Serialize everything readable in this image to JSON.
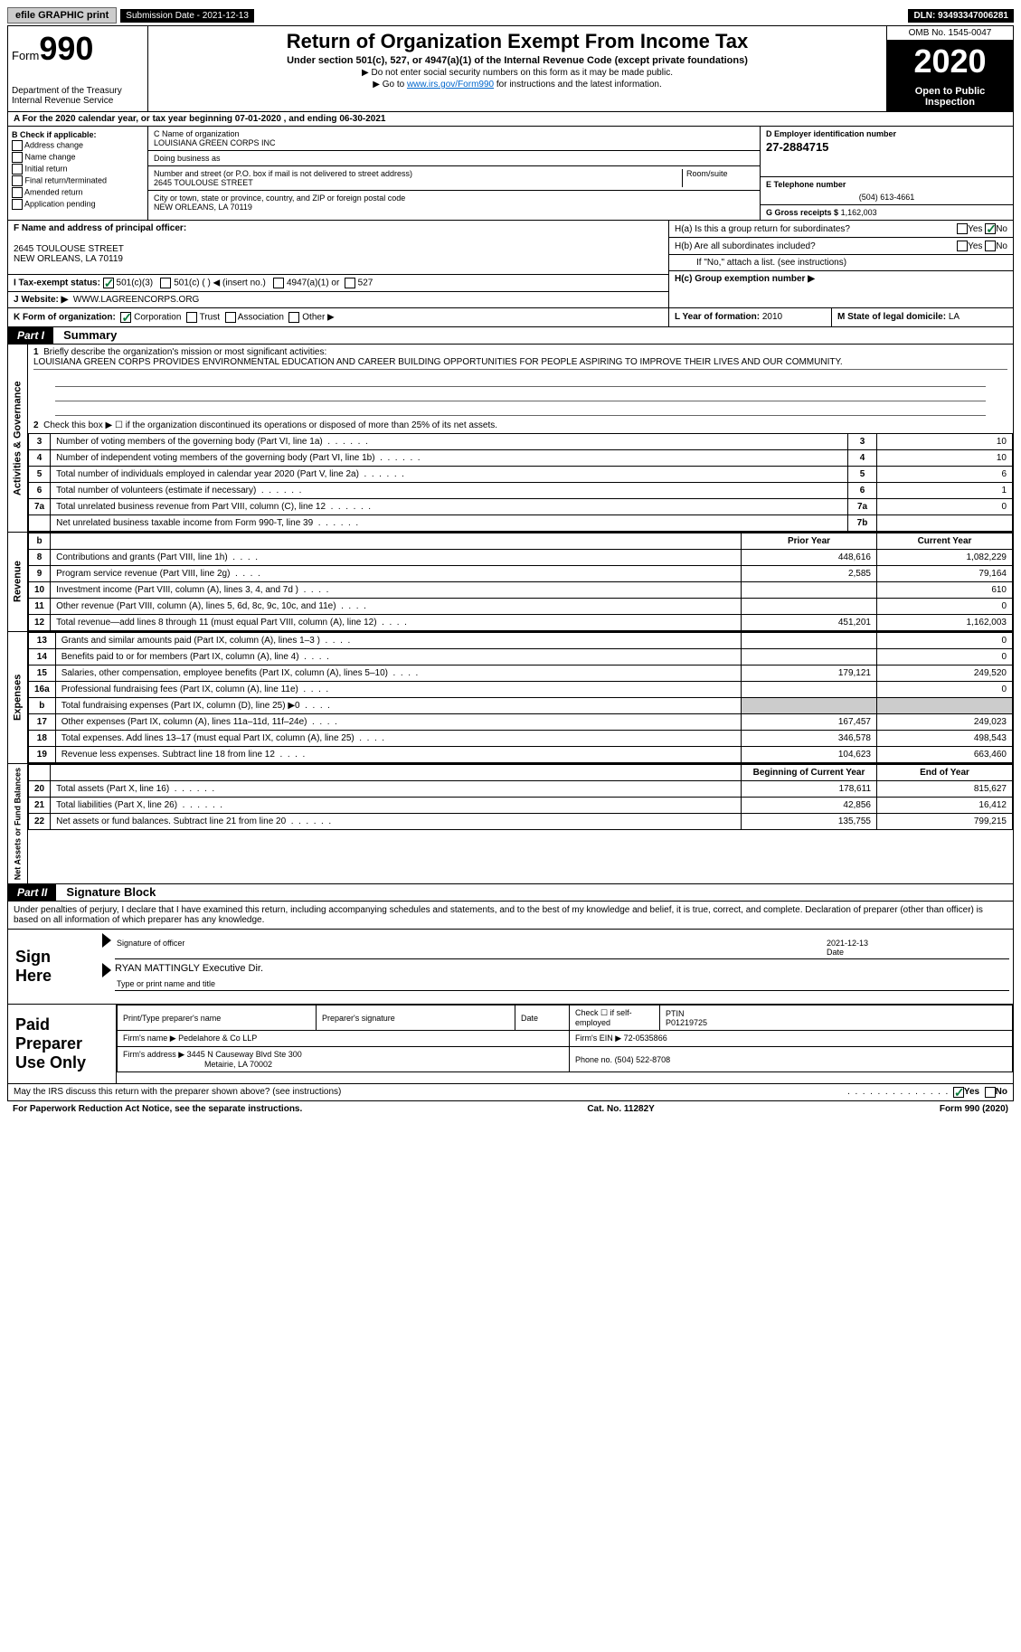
{
  "topbar": {
    "efile": "efile GRAPHIC print",
    "submission": "Submission Date - 2021-12-13",
    "dln": "DLN: 93493347006281"
  },
  "header": {
    "form_label": "Form",
    "form_num": "990",
    "dept": "Department of the Treasury\nInternal Revenue Service",
    "title": "Return of Organization Exempt From Income Tax",
    "sub": "Under section 501(c), 527, or 4947(a)(1) of the Internal Revenue Code (except private foundations)",
    "note1": "▶ Do not enter social security numbers on this form as it may be made public.",
    "note2_pre": "▶ Go to ",
    "note2_link": "www.irs.gov/Form990",
    "note2_post": " for instructions and the latest information.",
    "omb": "OMB No. 1545-0047",
    "year": "2020",
    "inspect": "Open to Public Inspection"
  },
  "row_a": "A For the 2020 calendar year, or tax year beginning 07-01-2020   , and ending 06-30-2021",
  "box_b": {
    "title": "B Check if applicable:",
    "items": [
      "Address change",
      "Name change",
      "Initial return",
      "Final return/terminated",
      "Amended return",
      "Application pending"
    ]
  },
  "box_c": {
    "c_label": "C Name of organization",
    "org": "LOUISIANA GREEN CORPS INC",
    "dba_label": "Doing business as",
    "dba": "",
    "street_label": "Number and street (or P.O. box if mail is not delivered to street address)",
    "room_label": "Room/suite",
    "street": "2645 TOULOUSE STREET",
    "city_label": "City or town, state or province, country, and ZIP or foreign postal code",
    "city": "NEW ORLEANS, LA  70119"
  },
  "box_d": {
    "label": "D Employer identification number",
    "ein": "27-2884715"
  },
  "box_e": {
    "label": "E Telephone number",
    "phone": "(504) 613-4661"
  },
  "box_g": {
    "label": "G Gross receipts $",
    "val": "1,162,003"
  },
  "box_f": {
    "label": "F Name and address of principal officer:",
    "addr1": "2645 TOULOUSE STREET",
    "addr2": "NEW ORLEANS, LA  70119"
  },
  "box_h": {
    "ha": "H(a)  Is this a group return for subordinates?",
    "hb": "H(b)  Are all subordinates included?",
    "hb_note": "If \"No,\" attach a list. (see instructions)",
    "hc": "H(c)  Group exemption number ▶",
    "yes": "Yes",
    "no": "No"
  },
  "row_i": {
    "label": "I   Tax-exempt status:",
    "opts": [
      "501(c)(3)",
      "501(c) (  ) ◀ (insert no.)",
      "4947(a)(1) or",
      "527"
    ]
  },
  "row_j": {
    "label": "J   Website: ▶",
    "val": "WWW.LAGREENCORPS.ORG"
  },
  "row_k": {
    "label": "K Form of organization:",
    "opts": [
      "Corporation",
      "Trust",
      "Association",
      "Other ▶"
    ]
  },
  "row_l": {
    "label": "L Year of formation:",
    "val": "2010"
  },
  "row_m": {
    "label": "M State of legal domicile:",
    "val": "LA"
  },
  "part1": {
    "hdr": "Part I",
    "title": "Summary"
  },
  "summary": {
    "vert1": "Activities & Governance",
    "vert2": "Revenue",
    "vert3": "Expenses",
    "vert4": "Net Assets or Fund Balances",
    "l1": "Briefly describe the organization's mission or most significant activities:",
    "mission": "LOUISIANA GREEN CORPS PROVIDES ENVIRONMENTAL EDUCATION AND CAREER BUILDING OPPORTUNITIES FOR PEOPLE ASPIRING TO IMPROVE THEIR LIVES AND OUR COMMUNITY.",
    "l2": "Check this box ▶ ☐  if the organization discontinued its operations or disposed of more than 25% of its net assets.",
    "lines_a": [
      {
        "n": "3",
        "d": "Number of voting members of the governing body (Part VI, line 1a)",
        "lbl": "3",
        "v": "10"
      },
      {
        "n": "4",
        "d": "Number of independent voting members of the governing body (Part VI, line 1b)",
        "lbl": "4",
        "v": "10"
      },
      {
        "n": "5",
        "d": "Total number of individuals employed in calendar year 2020 (Part V, line 2a)",
        "lbl": "5",
        "v": "6"
      },
      {
        "n": "6",
        "d": "Total number of volunteers (estimate if necessary)",
        "lbl": "6",
        "v": "1"
      },
      {
        "n": "7a",
        "d": "Total unrelated business revenue from Part VIII, column (C), line 12",
        "lbl": "7a",
        "v": "0"
      },
      {
        "n": "",
        "d": "Net unrelated business taxable income from Form 990-T, line 39",
        "lbl": "7b",
        "v": ""
      }
    ],
    "col_hdr": {
      "b": "b",
      "py": "Prior Year",
      "cy": "Current Year",
      "boy": "Beginning of Current Year",
      "eoy": "End of Year"
    },
    "lines_rev": [
      {
        "n": "8",
        "d": "Contributions and grants (Part VIII, line 1h)",
        "py": "448,616",
        "cy": "1,082,229"
      },
      {
        "n": "9",
        "d": "Program service revenue (Part VIII, line 2g)",
        "py": "2,585",
        "cy": "79,164"
      },
      {
        "n": "10",
        "d": "Investment income (Part VIII, column (A), lines 3, 4, and 7d )",
        "py": "",
        "cy": "610"
      },
      {
        "n": "11",
        "d": "Other revenue (Part VIII, column (A), lines 5, 6d, 8c, 9c, 10c, and 11e)",
        "py": "",
        "cy": "0"
      },
      {
        "n": "12",
        "d": "Total revenue—add lines 8 through 11 (must equal Part VIII, column (A), line 12)",
        "py": "451,201",
        "cy": "1,162,003"
      }
    ],
    "lines_exp": [
      {
        "n": "13",
        "d": "Grants and similar amounts paid (Part IX, column (A), lines 1–3 )",
        "py": "",
        "cy": "0"
      },
      {
        "n": "14",
        "d": "Benefits paid to or for members (Part IX, column (A), line 4)",
        "py": "",
        "cy": "0"
      },
      {
        "n": "15",
        "d": "Salaries, other compensation, employee benefits (Part IX, column (A), lines 5–10)",
        "py": "179,121",
        "cy": "249,520"
      },
      {
        "n": "16a",
        "d": "Professional fundraising fees (Part IX, column (A), line 11e)",
        "py": "",
        "cy": "0"
      },
      {
        "n": "b",
        "d": "Total fundraising expenses (Part IX, column (D), line 25) ▶0",
        "py": "shade",
        "cy": "shade"
      },
      {
        "n": "17",
        "d": "Other expenses (Part IX, column (A), lines 11a–11d, 11f–24e)",
        "py": "167,457",
        "cy": "249,023"
      },
      {
        "n": "18",
        "d": "Total expenses. Add lines 13–17 (must equal Part IX, column (A), line 25)",
        "py": "346,578",
        "cy": "498,543"
      },
      {
        "n": "19",
        "d": "Revenue less expenses. Subtract line 18 from line 12",
        "py": "104,623",
        "cy": "663,460"
      }
    ],
    "lines_net": [
      {
        "n": "20",
        "d": "Total assets (Part X, line 16)",
        "py": "178,611",
        "cy": "815,627"
      },
      {
        "n": "21",
        "d": "Total liabilities (Part X, line 26)",
        "py": "42,856",
        "cy": "16,412"
      },
      {
        "n": "22",
        "d": "Net assets or fund balances. Subtract line 21 from line 20",
        "py": "135,755",
        "cy": "799,215"
      }
    ]
  },
  "part2": {
    "hdr": "Part II",
    "title": "Signature Block"
  },
  "sig_decl": "Under penalties of perjury, I declare that I have examined this return, including accompanying schedules and statements, and to the best of my knowledge and belief, it is true, correct, and complete. Declaration of preparer (other than officer) is based on all information of which preparer has any knowledge.",
  "sign": {
    "here": "Sign Here",
    "sig_label": "Signature of officer",
    "date_label": "Date",
    "date": "2021-12-13",
    "name": "RYAN MATTINGLY Executive Dir.",
    "name_label": "Type or print name and title"
  },
  "prep": {
    "title": "Paid Preparer Use Only",
    "c1": "Print/Type preparer's name",
    "c2": "Preparer's signature",
    "c3": "Date",
    "c4": "Check ☐ if self-employed",
    "c5_label": "PTIN",
    "c5": "P01219725",
    "firm_label": "Firm's name    ▶",
    "firm": "Pedelahore & Co LLP",
    "ein_label": "Firm's EIN ▶",
    "ein": "72-0535866",
    "addr_label": "Firm's address ▶",
    "addr1": "3445 N Causeway Blvd Ste 300",
    "addr2": "Metairie, LA  70002",
    "phone_label": "Phone no.",
    "phone": "(504) 522-8708"
  },
  "irs_discuss": "May the IRS discuss this return with the preparer shown above? (see instructions)",
  "footer": {
    "pra": "For Paperwork Reduction Act Notice, see the separate instructions.",
    "cat": "Cat. No. 11282Y",
    "form": "Form 990 (2020)"
  }
}
